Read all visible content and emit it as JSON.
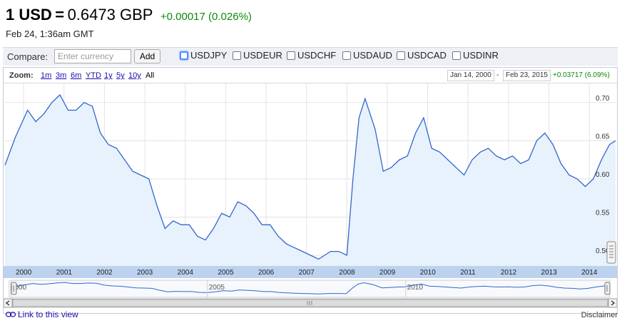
{
  "quote": {
    "pair_label": "1 USD",
    "equals": "=",
    "rate_label": "0.6473 GBP",
    "change_label": "+0.00017 (0.026%)",
    "timestamp": "Feb 24, 1:36am GMT"
  },
  "compare": {
    "label": "Compare:",
    "placeholder": "Enter currency",
    "add_label": "Add",
    "pairs": [
      "USDJPY",
      "USDEUR",
      "USDCHF",
      "USDAUD",
      "USDCAD",
      "USDINR"
    ]
  },
  "zoom": {
    "label": "Zoom:",
    "options": [
      "1m",
      "3m",
      "6m",
      "YTD",
      "1y",
      "5y",
      "10y",
      "All"
    ],
    "start_date": "Jan 14, 2000",
    "separator": "-",
    "end_date": "Feb 23, 2015",
    "range_change": "+0.03717 (6.09%)"
  },
  "colors": {
    "line": "#3366cc",
    "fill": "#e8f2fc",
    "axis_band": "#bcd2ee",
    "positive": "#0c8a0c"
  },
  "chart_data": {
    "type": "area",
    "x_tick_labels": [
      "2000",
      "2001",
      "2002",
      "2003",
      "2004",
      "2005",
      "2006",
      "2007",
      "2008",
      "2009",
      "2010",
      "2011",
      "2012",
      "2013",
      "2014"
    ],
    "y_tick_labels": [
      "0.50",
      "0.55",
      "0.60",
      "0.65",
      "0.70"
    ],
    "ylim": [
      0.486,
      0.725
    ],
    "xlim": [
      2000.04,
      2015.15
    ],
    "grid": true,
    "x": [
      2000.04,
      2000.3,
      2000.6,
      2000.8,
      2001.0,
      2001.2,
      2001.4,
      2001.6,
      2001.8,
      2002.0,
      2002.2,
      2002.4,
      2002.6,
      2002.8,
      2003.0,
      2003.2,
      2003.4,
      2003.6,
      2003.8,
      2004.0,
      2004.2,
      2004.4,
      2004.6,
      2004.8,
      2005.0,
      2005.2,
      2005.4,
      2005.6,
      2005.8,
      2006.0,
      2006.2,
      2006.4,
      2006.6,
      2006.8,
      2007.0,
      2007.2,
      2007.4,
      2007.6,
      2007.8,
      2007.95,
      2008.1,
      2008.3,
      2008.5,
      2008.65,
      2008.8,
      2008.95,
      2009.2,
      2009.4,
      2009.6,
      2009.8,
      2010.0,
      2010.2,
      2010.4,
      2010.6,
      2010.8,
      2011.0,
      2011.2,
      2011.4,
      2011.6,
      2011.8,
      2012.0,
      2012.2,
      2012.4,
      2012.6,
      2012.8,
      2013.0,
      2013.2,
      2013.4,
      2013.6,
      2013.8,
      2014.0,
      2014.2,
      2014.4,
      2014.6,
      2014.8,
      2015.0,
      2015.15
    ],
    "series": [
      {
        "values": [
          0.618,
          0.655,
          0.69,
          0.675,
          0.685,
          0.7,
          0.71,
          0.69,
          0.69,
          0.7,
          0.695,
          0.66,
          0.645,
          0.64,
          0.625,
          0.61,
          0.605,
          0.6,
          0.565,
          0.535,
          0.545,
          0.54,
          0.54,
          0.525,
          0.52,
          0.535,
          0.555,
          0.55,
          0.57,
          0.565,
          0.555,
          0.54,
          0.54,
          0.525,
          0.515,
          0.51,
          0.505,
          0.5,
          0.495,
          0.5,
          0.505,
          0.505,
          0.5,
          0.6,
          0.68,
          0.705,
          0.665,
          0.61,
          0.615,
          0.625,
          0.63,
          0.66,
          0.68,
          0.64,
          0.635,
          0.625,
          0.615,
          0.605,
          0.625,
          0.635,
          0.64,
          0.63,
          0.625,
          0.63,
          0.62,
          0.625,
          0.65,
          0.66,
          0.645,
          0.62,
          0.605,
          0.6,
          0.59,
          0.6,
          0.625,
          0.645,
          0.65
        ]
      }
    ]
  },
  "navigator": {
    "labels": [
      "2000",
      "2005",
      "2010"
    ]
  },
  "footer": {
    "link_label": "Link to this view",
    "disclaimer": "Disclaimer"
  }
}
